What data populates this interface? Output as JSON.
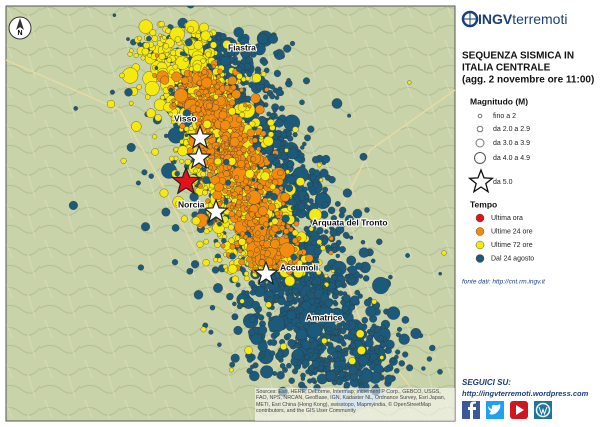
{
  "logo": {
    "brand": "INGV",
    "suffix": "terremoti"
  },
  "title": [
    "SEQUENZA SISMICA IN",
    "ITALIA CENTRALE",
    "(agg. 2 novembre ore 11:00)"
  ],
  "north": "N",
  "places": [
    "Fiastra",
    "Visso",
    "Norcia",
    "Arquata del Tronto",
    "Accumoli",
    "Amatrice"
  ],
  "legend": {
    "magnitude_title": "Magnitudo (M)",
    "magnitude": [
      "fino a 2",
      "da 2.0 a 2.9",
      "da 3.0 a 3.9",
      "da 4.0 a 4.9",
      "da 5.0"
    ],
    "time_title": "Tempo",
    "time": [
      {
        "label": "Ultima ora",
        "color": "#e3121a"
      },
      {
        "label": "Ultime 24 ore",
        "color": "#f28c0f"
      },
      {
        "label": "Ultime 72 ore",
        "color": "#f5e90f"
      },
      {
        "label": "Dal 24 agosto",
        "color": "#1b5a7a"
      }
    ]
  },
  "source": "fonte dati: http://cnt.rm.ingv.it",
  "follow": {
    "title": "SEGUICI SU:",
    "url": "http://ingvterremoti.wordpress.com"
  },
  "attribution": "Sources: Esri, HERE, DeLorme, Intermap, increment P Corp., GEBCO, USGS, FAO, NPS, NRCAN, GeoBase, IGN, Kadaster NL, Ordnance Survey, Esri Japan, METI, Esri China (Hong Kong), swisstopo, Mapmyindia, © OpenStreetMap contributors, and the GIS User Community"
}
